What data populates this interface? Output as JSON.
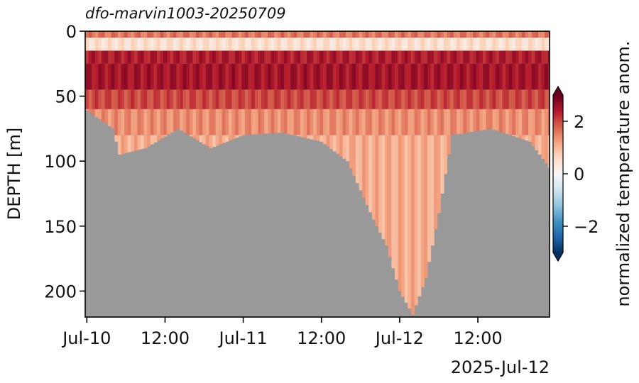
{
  "chart_data": {
    "type": "heatmap",
    "title": "dfo-marvin1003-20250709",
    "xlabel": "",
    "x_offset_label": "2025-Jul-12",
    "ylabel": "DEPTH [m]",
    "xlim": [
      "2025-07-09T23:45",
      "2025-07-12T23:00"
    ],
    "ylim": [
      220,
      0
    ],
    "x_ticks": [
      {
        "t": "2025-07-10T00:00",
        "label": "Jul-10"
      },
      {
        "t": "2025-07-10T12:00",
        "label": "12:00"
      },
      {
        "t": "2025-07-11T00:00",
        "label": "Jul-11"
      },
      {
        "t": "2025-07-11T12:00",
        "label": "12:00"
      },
      {
        "t": "2025-07-12T00:00",
        "label": "Jul-12"
      },
      {
        "t": "2025-07-12T12:00",
        "label": "12:00"
      }
    ],
    "y_ticks": [
      0,
      50,
      100,
      150,
      200
    ],
    "colorbar": {
      "label": "normalized temperature anom.",
      "range": [
        -3,
        3
      ],
      "ticks": [
        -2,
        0,
        2
      ],
      "extend": "both",
      "colormap": "RdBu_r"
    },
    "missing_color": "#999999",
    "depth_extent": [
      {
        "t": "2025-07-09T23:45",
        "max_depth": 60
      },
      {
        "t": "2025-07-10T04:00",
        "max_depth": 75
      },
      {
        "t": "2025-07-10T05:00",
        "max_depth": 95
      },
      {
        "t": "2025-07-10T09:00",
        "max_depth": 90
      },
      {
        "t": "2025-07-10T14:00",
        "max_depth": 75
      },
      {
        "t": "2025-07-10T19:00",
        "max_depth": 90
      },
      {
        "t": "2025-07-11T00:00",
        "max_depth": 80
      },
      {
        "t": "2025-07-11T06:00",
        "max_depth": 78
      },
      {
        "t": "2025-07-11T12:00",
        "max_depth": 85
      },
      {
        "t": "2025-07-11T16:00",
        "max_depth": 100
      },
      {
        "t": "2025-07-11T20:00",
        "max_depth": 145
      },
      {
        "t": "2025-07-11T22:00",
        "max_depth": 165
      },
      {
        "t": "2025-07-12T00:00",
        "max_depth": 200
      },
      {
        "t": "2025-07-12T02:00",
        "max_depth": 218
      },
      {
        "t": "2025-07-12T04:00",
        "max_depth": 190
      },
      {
        "t": "2025-07-12T06:00",
        "max_depth": 140
      },
      {
        "t": "2025-07-12T08:00",
        "max_depth": 80
      },
      {
        "t": "2025-07-12T14:00",
        "max_depth": 75
      },
      {
        "t": "2025-07-12T20:00",
        "max_depth": 85
      },
      {
        "t": "2025-07-12T23:00",
        "max_depth": 105
      }
    ],
    "anomaly_profile": [
      {
        "depth": [
          0,
          5
        ],
        "value": 1.6
      },
      {
        "depth": [
          5,
          15
        ],
        "value": 0.5
      },
      {
        "depth": [
          15,
          25
        ],
        "value": 2.4
      },
      {
        "depth": [
          25,
          45
        ],
        "value": 2.5
      },
      {
        "depth": [
          45,
          60
        ],
        "value": 2.0
      },
      {
        "depth": [
          60,
          80
        ],
        "value": 1.4
      },
      {
        "depth": [
          80,
          220
        ],
        "value": 1.1
      }
    ]
  }
}
